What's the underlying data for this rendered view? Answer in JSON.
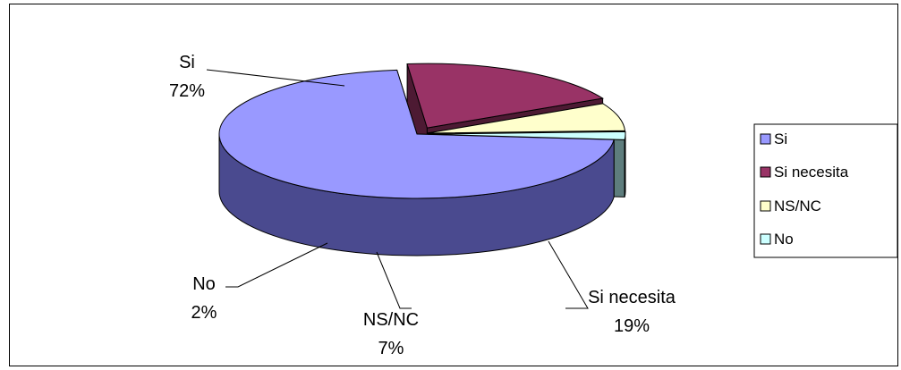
{
  "chart_data": {
    "type": "pie",
    "title": "",
    "style": "3d-exploded",
    "slices": [
      {
        "name": "Si",
        "value": 72,
        "color": "#9999ff",
        "dark": "#4a4a8f"
      },
      {
        "name": "Si necesita",
        "value": 19,
        "color": "#993366",
        "dark": "#4d1a33"
      },
      {
        "name": "NS/NC",
        "value": 7,
        "color": "#ffffcc",
        "dark": "#7d7d5e"
      },
      {
        "name": "No",
        "value": 2,
        "color": "#ccffff",
        "dark": "#5e7d7d"
      }
    ],
    "labels": [
      {
        "name": "Si",
        "pct": "72%"
      },
      {
        "name": "Si necesita",
        "pct": "19%"
      },
      {
        "name": "NS/NC",
        "pct": "7%"
      },
      {
        "name": "No",
        "pct": "2%"
      }
    ],
    "legend": {
      "position": "right",
      "entries": [
        "Si",
        "Si necesita",
        "NS/NC",
        "No"
      ]
    }
  }
}
